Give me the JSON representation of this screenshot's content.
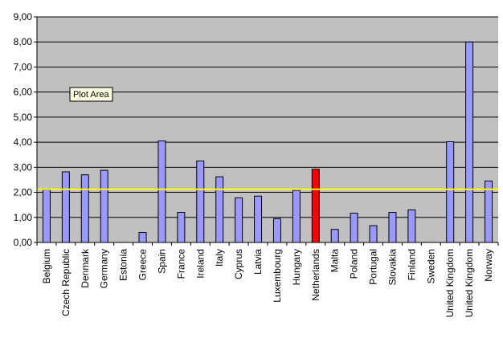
{
  "chart_data": {
    "type": "bar",
    "categories": [
      "Belgium",
      "Czech Republic",
      "Denmark",
      "Germany",
      "Estonia",
      "Greece",
      "Spain",
      "France",
      "Ireland",
      "Italy",
      "Cyprus",
      "Latvia",
      "Luxembourg",
      "Hungary",
      "Netherlands",
      "Malta",
      "Poland",
      "Portugal",
      "Slovakia",
      "Finland",
      "Sweden",
      "United Kingdom",
      "United Kingdom",
      "Norway"
    ],
    "values": [
      2.1,
      2.82,
      2.7,
      2.88,
      0,
      0.4,
      4.05,
      1.2,
      3.25,
      2.62,
      1.78,
      1.85,
      0.95,
      2.08,
      2.92,
      0.52,
      1.17,
      0.67,
      1.2,
      1.3,
      0,
      4.02,
      8.0,
      2.45
    ],
    "highlight_category": "Netherlands",
    "reference_line": 2.12,
    "yticks": [
      "0,00",
      "1,00",
      "2,00",
      "3,00",
      "4,00",
      "5,00",
      "6,00",
      "7,00",
      "8,00",
      "9,00"
    ],
    "ylim": [
      0,
      9
    ],
    "grid": true,
    "legend": "none",
    "title": "",
    "xlabel": "",
    "ylabel": "",
    "tooltip": "Plot Area",
    "colors": {
      "bar": "#9999ff",
      "highlight": "#ff0000",
      "reference_line": "#ffff00",
      "plot_background": "#c0c0c0",
      "grid": "#000000",
      "tooltip_background": "#ffffe1"
    }
  }
}
